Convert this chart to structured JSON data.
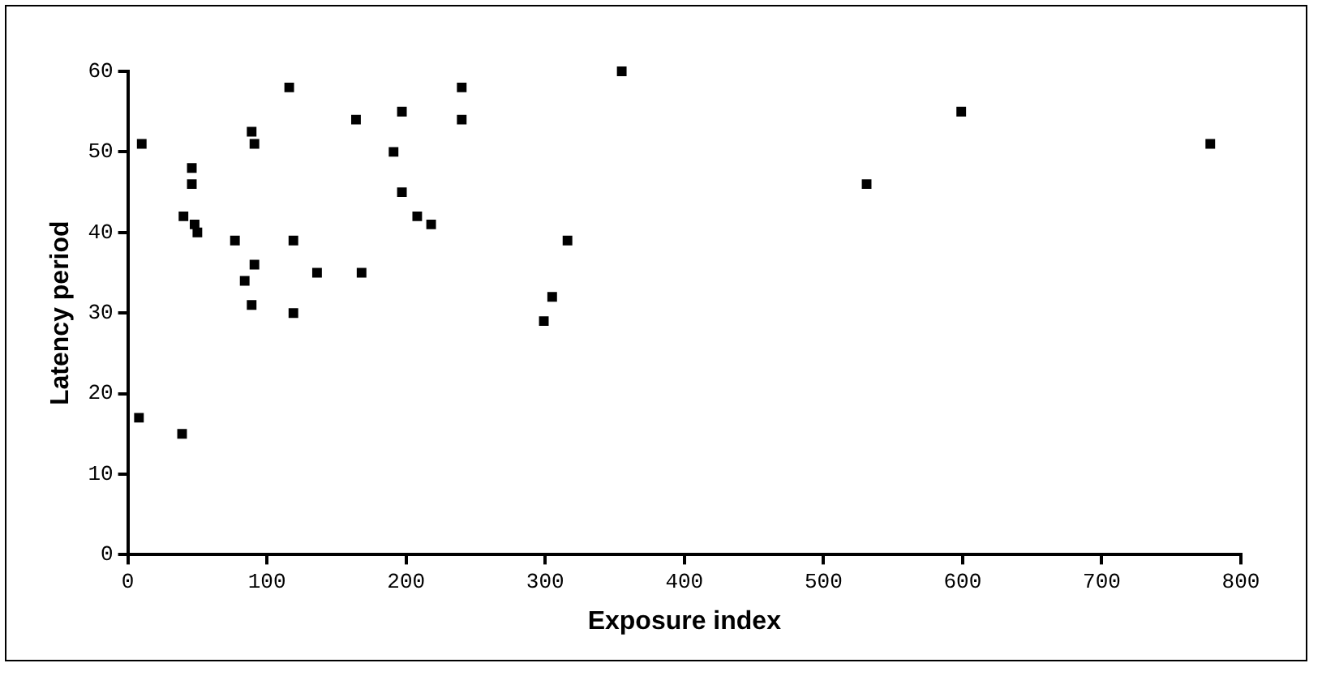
{
  "chart_data": {
    "type": "scatter",
    "xlabel": "Exposure index",
    "ylabel": "Latency period",
    "xlim": [
      0,
      800
    ],
    "xticks": [
      0,
      100,
      200,
      300,
      400,
      500,
      600,
      700,
      800
    ],
    "ylim": [
      0,
      60
    ],
    "yticks": [
      0,
      10,
      20,
      30,
      40,
      50,
      60
    ],
    "grid": false,
    "legend": false,
    "marker": "square",
    "series": [
      {
        "color": "#000000",
        "x": [
          10,
          8,
          39,
          40,
          46,
          46,
          48,
          50,
          77,
          84,
          89,
          89,
          91,
          91,
          116,
          119,
          119,
          136,
          168,
          164,
          191,
          197,
          197,
          208,
          218,
          240,
          240,
          299,
          305,
          316,
          355,
          531,
          599,
          778
        ],
        "values": [
          51,
          17,
          15,
          42,
          48,
          46,
          41,
          40,
          39,
          34,
          31,
          52.5,
          51,
          36,
          58,
          39,
          30,
          35,
          35,
          54,
          50,
          55,
          45,
          42,
          41,
          58,
          54,
          29,
          32,
          39,
          60,
          46,
          55,
          51
        ]
      }
    ]
  }
}
